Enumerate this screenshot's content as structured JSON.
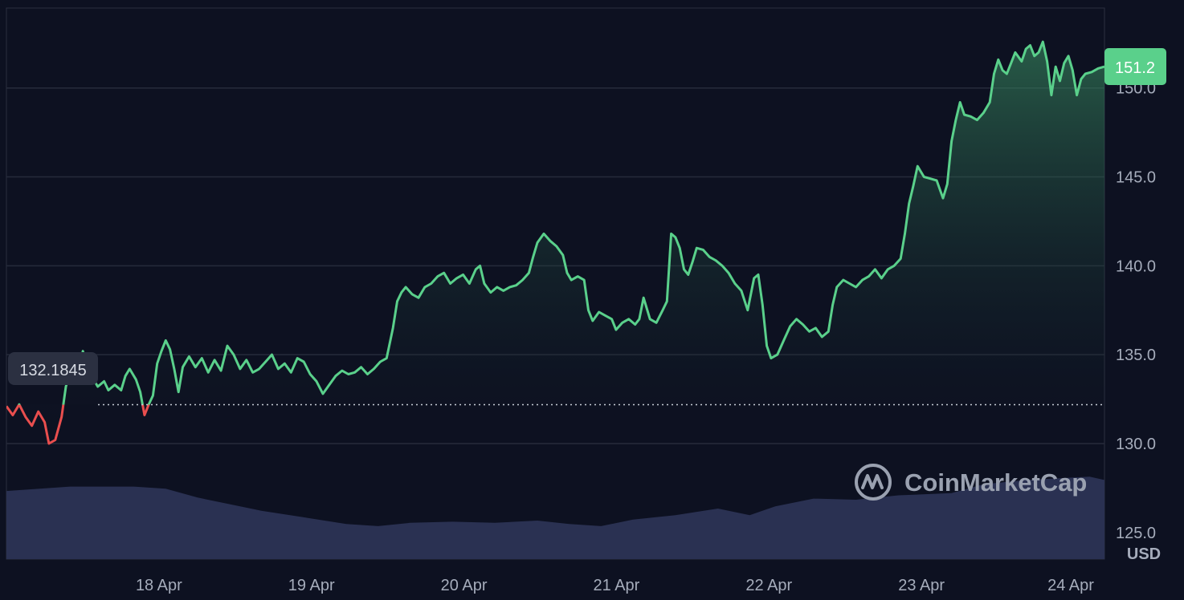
{
  "chart_data": {
    "type": "line",
    "unit_label": "USD",
    "watermark": "CoinMarketCap",
    "y_ticks": [
      "125.0",
      "130.0",
      "135.0",
      "140.0",
      "145.0",
      "150.0"
    ],
    "y_tick_values": [
      125,
      130,
      135,
      140,
      145,
      150
    ],
    "ylim": [
      123.5,
      154.5
    ],
    "x_ticks": [
      "18 Apr",
      "19 Apr",
      "20 Apr",
      "21 Apr",
      "22 Apr",
      "23 Apr",
      "24 Apr"
    ],
    "x_tick_days": [
      1,
      2,
      3,
      4,
      5,
      6,
      7
    ],
    "xlim": [
      0.0,
      7.2
    ],
    "grid": true,
    "baseline_value": 132.1845,
    "baseline_label": "132.1845",
    "current_value": 151.2,
    "current_label": "151.2",
    "colors": {
      "up": "#5ad08b",
      "down": "#e94e4e",
      "volume": "#2a3152",
      "background": "#0d1121"
    },
    "series": [
      {
        "points": [
          [
            0.0,
            132.1
          ],
          [
            0.03,
            131.6
          ],
          [
            0.06,
            132.2
          ],
          [
            0.09,
            131.5
          ],
          [
            0.12,
            131.0
          ],
          [
            0.15,
            131.8
          ],
          [
            0.18,
            131.2
          ],
          [
            0.2,
            130.0
          ],
          [
            0.23,
            130.2
          ],
          [
            0.26,
            131.5
          ],
          [
            0.28,
            133.2
          ],
          [
            0.31,
            134.4
          ],
          [
            0.34,
            134.0
          ],
          [
            0.36,
            135.2
          ],
          [
            0.38,
            134.2
          ],
          [
            0.4,
            133.8
          ],
          [
            0.43,
            133.2
          ],
          [
            0.46,
            133.5
          ],
          [
            0.48,
            133.0
          ],
          [
            0.51,
            133.3
          ],
          [
            0.54,
            133.0
          ],
          [
            0.56,
            133.8
          ],
          [
            0.58,
            134.2
          ],
          [
            0.61,
            133.6
          ],
          [
            0.63,
            132.9
          ],
          [
            0.65,
            131.6
          ],
          [
            0.67,
            132.2
          ],
          [
            0.69,
            132.7
          ],
          [
            0.71,
            134.5
          ],
          [
            0.73,
            135.2
          ],
          [
            0.75,
            135.8
          ],
          [
            0.77,
            135.3
          ],
          [
            0.79,
            134.2
          ],
          [
            0.81,
            132.9
          ],
          [
            0.83,
            134.3
          ],
          [
            0.86,
            134.9
          ],
          [
            0.89,
            134.3
          ],
          [
            0.92,
            134.8
          ],
          [
            0.95,
            134.0
          ],
          [
            0.98,
            134.7
          ],
          [
            1.01,
            134.1
          ],
          [
            1.04,
            135.5
          ],
          [
            1.07,
            135.0
          ],
          [
            1.1,
            134.2
          ],
          [
            1.13,
            134.7
          ],
          [
            1.16,
            134.0
          ],
          [
            1.19,
            134.2
          ],
          [
            1.22,
            134.6
          ],
          [
            1.25,
            135.0
          ],
          [
            1.28,
            134.2
          ],
          [
            1.31,
            134.5
          ],
          [
            1.34,
            134.0
          ],
          [
            1.37,
            134.8
          ],
          [
            1.4,
            134.6
          ],
          [
            1.43,
            133.9
          ],
          [
            1.46,
            133.5
          ],
          [
            1.49,
            132.8
          ],
          [
            1.52,
            133.3
          ],
          [
            1.55,
            133.8
          ],
          [
            1.58,
            134.1
          ],
          [
            1.61,
            133.9
          ],
          [
            1.64,
            134.0
          ],
          [
            1.67,
            134.3
          ],
          [
            1.7,
            133.9
          ],
          [
            1.73,
            134.2
          ],
          [
            1.76,
            134.6
          ],
          [
            1.79,
            134.8
          ],
          [
            1.82,
            136.5
          ],
          [
            1.84,
            138.0
          ],
          [
            1.86,
            138.5
          ],
          [
            1.88,
            138.8
          ],
          [
            1.91,
            138.4
          ],
          [
            1.94,
            138.2
          ],
          [
            1.97,
            138.8
          ],
          [
            2.0,
            139.0
          ],
          [
            2.03,
            139.4
          ],
          [
            2.06,
            139.6
          ],
          [
            2.09,
            139.0
          ],
          [
            2.12,
            139.3
          ],
          [
            2.15,
            139.5
          ],
          [
            2.18,
            139.0
          ],
          [
            2.21,
            139.8
          ],
          [
            2.23,
            140.0
          ],
          [
            2.25,
            139.0
          ],
          [
            2.28,
            138.5
          ],
          [
            2.31,
            138.8
          ],
          [
            2.34,
            138.6
          ],
          [
            2.37,
            138.8
          ],
          [
            2.4,
            138.9
          ],
          [
            2.43,
            139.2
          ],
          [
            2.46,
            139.6
          ],
          [
            2.48,
            140.5
          ],
          [
            2.5,
            141.3
          ],
          [
            2.53,
            141.8
          ],
          [
            2.56,
            141.4
          ],
          [
            2.59,
            141.1
          ],
          [
            2.62,
            140.6
          ],
          [
            2.64,
            139.6
          ],
          [
            2.66,
            139.2
          ],
          [
            2.69,
            139.4
          ],
          [
            2.72,
            139.2
          ],
          [
            2.74,
            137.5
          ],
          [
            2.76,
            136.9
          ],
          [
            2.79,
            137.4
          ],
          [
            2.82,
            137.2
          ],
          [
            2.85,
            137.0
          ],
          [
            2.87,
            136.4
          ],
          [
            2.9,
            136.8
          ],
          [
            2.93,
            137.0
          ],
          [
            2.96,
            136.7
          ],
          [
            2.98,
            137.0
          ],
          [
            3.0,
            138.2
          ],
          [
            3.03,
            137.0
          ],
          [
            3.06,
            136.8
          ],
          [
            3.09,
            137.5
          ],
          [
            3.11,
            138.0
          ],
          [
            3.13,
            141.8
          ],
          [
            3.15,
            141.6
          ],
          [
            3.17,
            141.0
          ],
          [
            3.19,
            139.8
          ],
          [
            3.21,
            139.5
          ],
          [
            3.23,
            140.2
          ],
          [
            3.25,
            141.0
          ],
          [
            3.28,
            140.9
          ],
          [
            3.31,
            140.5
          ],
          [
            3.34,
            140.3
          ],
          [
            3.37,
            140.0
          ],
          [
            3.4,
            139.6
          ],
          [
            3.43,
            139.0
          ],
          [
            3.46,
            138.6
          ],
          [
            3.49,
            137.5
          ],
          [
            3.52,
            139.3
          ],
          [
            3.54,
            139.5
          ],
          [
            3.56,
            137.8
          ],
          [
            3.58,
            135.5
          ],
          [
            3.6,
            134.8
          ],
          [
            3.63,
            135.0
          ],
          [
            3.66,
            135.8
          ],
          [
            3.69,
            136.6
          ],
          [
            3.72,
            137.0
          ],
          [
            3.75,
            136.7
          ],
          [
            3.78,
            136.3
          ],
          [
            3.81,
            136.5
          ],
          [
            3.84,
            136.0
          ],
          [
            3.87,
            136.3
          ],
          [
            3.89,
            137.8
          ],
          [
            3.91,
            138.8
          ],
          [
            3.94,
            139.2
          ],
          [
            3.97,
            139.0
          ],
          [
            4.0,
            138.8
          ],
          [
            4.03,
            139.2
          ],
          [
            4.06,
            139.4
          ],
          [
            4.09,
            139.8
          ],
          [
            4.12,
            139.3
          ],
          [
            4.15,
            139.8
          ],
          [
            4.18,
            140.0
          ],
          [
            4.21,
            140.4
          ],
          [
            4.23,
            141.8
          ],
          [
            4.25,
            143.5
          ],
          [
            4.27,
            144.5
          ],
          [
            4.29,
            145.6
          ],
          [
            4.32,
            145.0
          ],
          [
            4.35,
            144.9
          ],
          [
            4.38,
            144.8
          ],
          [
            4.41,
            143.8
          ],
          [
            4.43,
            144.6
          ],
          [
            4.45,
            147.0
          ],
          [
            4.47,
            148.2
          ],
          [
            4.49,
            149.2
          ],
          [
            4.51,
            148.5
          ],
          [
            4.54,
            148.4
          ],
          [
            4.57,
            148.2
          ],
          [
            4.6,
            148.6
          ],
          [
            4.63,
            149.2
          ],
          [
            4.65,
            150.8
          ],
          [
            4.67,
            151.6
          ],
          [
            4.69,
            151.0
          ],
          [
            4.71,
            150.8
          ],
          [
            4.73,
            151.4
          ],
          [
            4.75,
            152.0
          ],
          [
            4.78,
            151.5
          ],
          [
            4.8,
            152.2
          ],
          [
            4.82,
            152.4
          ],
          [
            4.84,
            151.8
          ],
          [
            4.86,
            152.0
          ],
          [
            4.88,
            152.6
          ],
          [
            4.9,
            151.5
          ],
          [
            4.92,
            149.6
          ],
          [
            4.94,
            151.2
          ],
          [
            4.96,
            150.4
          ],
          [
            4.98,
            151.4
          ],
          [
            5.0,
            151.8
          ],
          [
            5.02,
            151.0
          ],
          [
            5.04,
            149.6
          ],
          [
            5.06,
            150.5
          ],
          [
            5.08,
            150.8
          ],
          [
            5.11,
            150.9
          ],
          [
            5.14,
            151.1
          ],
          [
            5.17,
            151.2
          ]
        ]
      }
    ],
    "volume": [
      [
        0.0,
        0.62
      ],
      [
        0.3,
        0.66
      ],
      [
        0.6,
        0.66
      ],
      [
        0.75,
        0.64
      ],
      [
        0.9,
        0.56
      ],
      [
        1.05,
        0.5
      ],
      [
        1.2,
        0.44
      ],
      [
        1.4,
        0.38
      ],
      [
        1.6,
        0.32
      ],
      [
        1.75,
        0.3
      ],
      [
        1.9,
        0.33
      ],
      [
        2.1,
        0.34
      ],
      [
        2.3,
        0.33
      ],
      [
        2.5,
        0.35
      ],
      [
        2.65,
        0.32
      ],
      [
        2.8,
        0.3
      ],
      [
        2.95,
        0.36
      ],
      [
        3.15,
        0.4
      ],
      [
        3.35,
        0.46
      ],
      [
        3.5,
        0.4
      ],
      [
        3.62,
        0.48
      ],
      [
        3.8,
        0.55
      ],
      [
        4.0,
        0.54
      ],
      [
        4.2,
        0.58
      ],
      [
        4.45,
        0.6
      ],
      [
        4.6,
        0.68
      ],
      [
        4.8,
        0.72
      ],
      [
        5.0,
        0.74
      ],
      [
        5.1,
        0.75
      ],
      [
        5.17,
        0.72
      ]
    ]
  }
}
